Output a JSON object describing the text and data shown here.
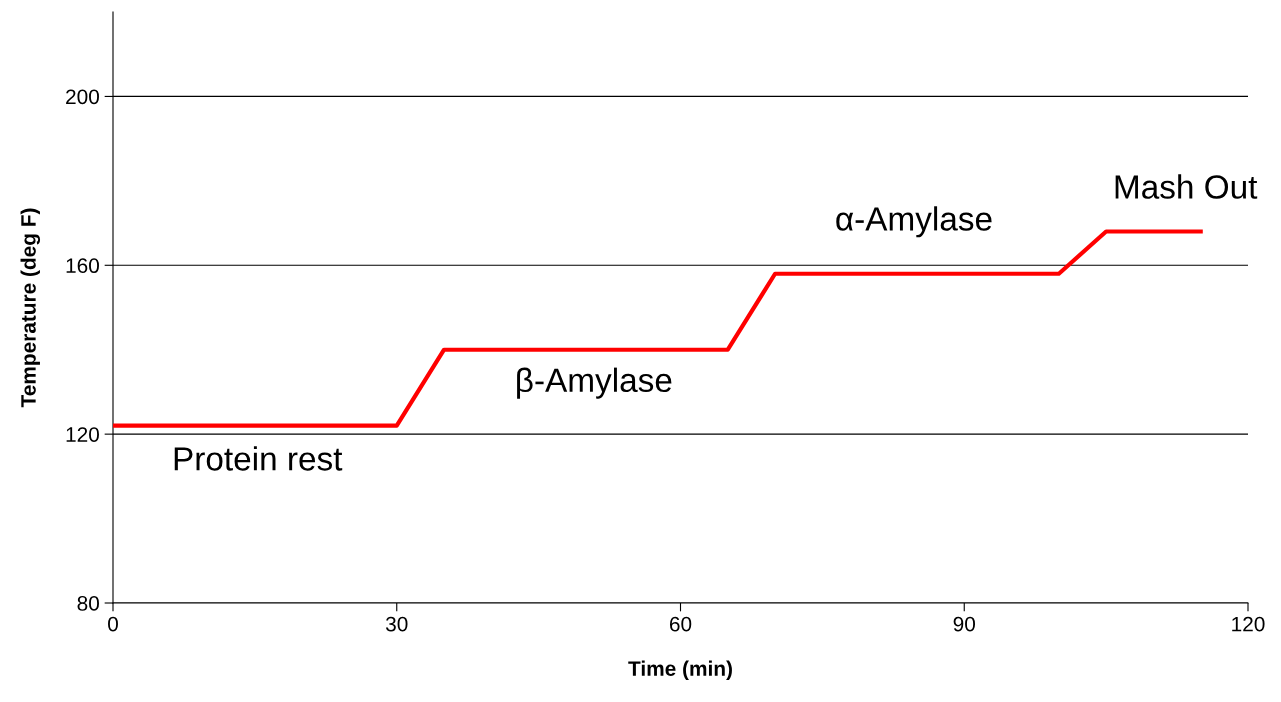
{
  "chart_data": {
    "type": "line",
    "xlabel": "Time (min)",
    "ylabel": "Temperature (deg F)",
    "x": [
      0,
      30,
      35,
      65,
      70,
      100,
      105,
      115
    ],
    "series": [
      {
        "color": "#ff0000",
        "values": [
          122,
          122,
          140,
          140,
          158,
          158,
          168,
          168
        ]
      }
    ],
    "xlim": [
      0,
      120
    ],
    "xticks": [
      0,
      30,
      60,
      90,
      120
    ],
    "ylim": [
      80,
      220
    ],
    "yticks": [
      80,
      120,
      160,
      200
    ],
    "grid": "y",
    "marker": "none",
    "line_style": "solid",
    "annotations": [
      "Protein rest",
      "β-Amylase",
      "α-Amylase",
      "Mash Out"
    ]
  }
}
